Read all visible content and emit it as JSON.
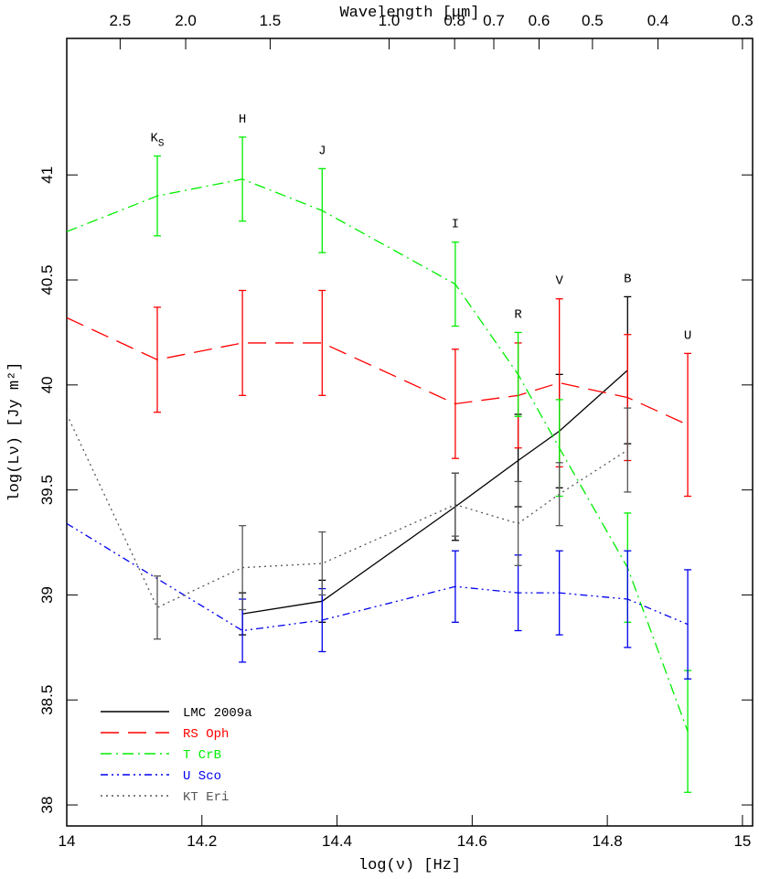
{
  "chart_data": {
    "type": "errorbar-line",
    "xlabel": "log(ν) [Hz]",
    "ylabel": "log(Lν) [Jy m²]",
    "x2label": "Wavelength [μm]",
    "xlim": [
      14,
      15.015
    ],
    "ylim": [
      37.9,
      41.65
    ],
    "xticks": [
      14,
      14.2,
      14.4,
      14.6,
      14.8,
      15
    ],
    "yticks": [
      38,
      38.5,
      39,
      39.5,
      40,
      40.5,
      41
    ],
    "x2ticks": [
      {
        "value": 14.079,
        "label": "2.5"
      },
      {
        "value": 14.176,
        "label": "2.0"
      },
      {
        "value": 14.301,
        "label": "1.5"
      },
      {
        "value": 14.477,
        "label": "1.0"
      },
      {
        "value": 14.574,
        "label": "0.8"
      },
      {
        "value": 14.632,
        "label": "0.7"
      },
      {
        "value": 14.699,
        "label": "0.6"
      },
      {
        "value": 14.778,
        "label": "0.5"
      },
      {
        "value": 14.875,
        "label": "0.4"
      },
      {
        "value": 15.0,
        "label": "0.3"
      }
    ],
    "bands": {
      "x": [
        14.134,
        14.26,
        14.378,
        14.575,
        14.668,
        14.729,
        14.83,
        14.919
      ],
      "labels": [
        {
          "text": "K",
          "sub": "S"
        },
        "H",
        "J",
        "I",
        "R",
        "V",
        "B",
        "U"
      ]
    },
    "legend": "lower left",
    "series": [
      {
        "name": "LMC 2009a",
        "color": "#000000",
        "line_style": "solid",
        "x": [
          14.26,
          14.378,
          14.575,
          14.668,
          14.729,
          14.83
        ],
        "values": [
          38.91,
          38.97,
          39.42,
          39.64,
          39.78,
          40.07
        ],
        "errors": [
          0.1,
          0.1,
          0.16,
          0.22,
          0.27,
          0.35
        ]
      },
      {
        "name": "RS Oph",
        "color": "#ff0000",
        "line_style": "dashed",
        "x": [
          14,
          14.134,
          14.26,
          14.378,
          14.575,
          14.668,
          14.729,
          14.83,
          14.919
        ],
        "values": [
          40.32,
          40.12,
          40.2,
          40.2,
          39.91,
          39.95,
          40.01,
          39.94,
          39.81
        ],
        "errors": [
          null,
          0.25,
          0.25,
          0.25,
          0.26,
          0.25,
          0.4,
          0.3,
          0.34
        ]
      },
      {
        "name": "T CrB",
        "color": "#00ee00",
        "line_style": "dashdot",
        "x": [
          14,
          14.134,
          14.26,
          14.378,
          14.575,
          14.668,
          14.729,
          14.83,
          14.919
        ],
        "values": [
          40.73,
          40.9,
          40.98,
          40.83,
          40.48,
          40.05,
          39.7,
          39.13,
          38.35
        ],
        "errors": [
          null,
          0.19,
          0.2,
          0.2,
          0.2,
          0.2,
          0.23,
          0.26,
          0.29
        ]
      },
      {
        "name": "U Sco",
        "color": "#0000ee",
        "line_style": "dashdotdot",
        "x": [
          14,
          14.26,
          14.378,
          14.575,
          14.668,
          14.729,
          14.83,
          14.919
        ],
        "values": [
          39.34,
          38.83,
          38.88,
          39.04,
          39.01,
          39.01,
          38.98,
          38.86
        ],
        "errors": [
          null,
          0.15,
          0.15,
          0.17,
          0.18,
          0.2,
          0.23,
          0.26
        ]
      },
      {
        "name": "KT Eri",
        "color": "#555555",
        "line_style": "dotted",
        "x": [
          14,
          14.134,
          14.26,
          14.378,
          14.575,
          14.668,
          14.729,
          14.83
        ],
        "values": [
          39.86,
          38.94,
          39.13,
          39.15,
          39.43,
          39.34,
          39.48,
          39.69
        ],
        "errors": [
          null,
          0.15,
          0.2,
          0.15,
          0.15,
          0.2,
          0.15,
          0.2
        ]
      }
    ]
  }
}
